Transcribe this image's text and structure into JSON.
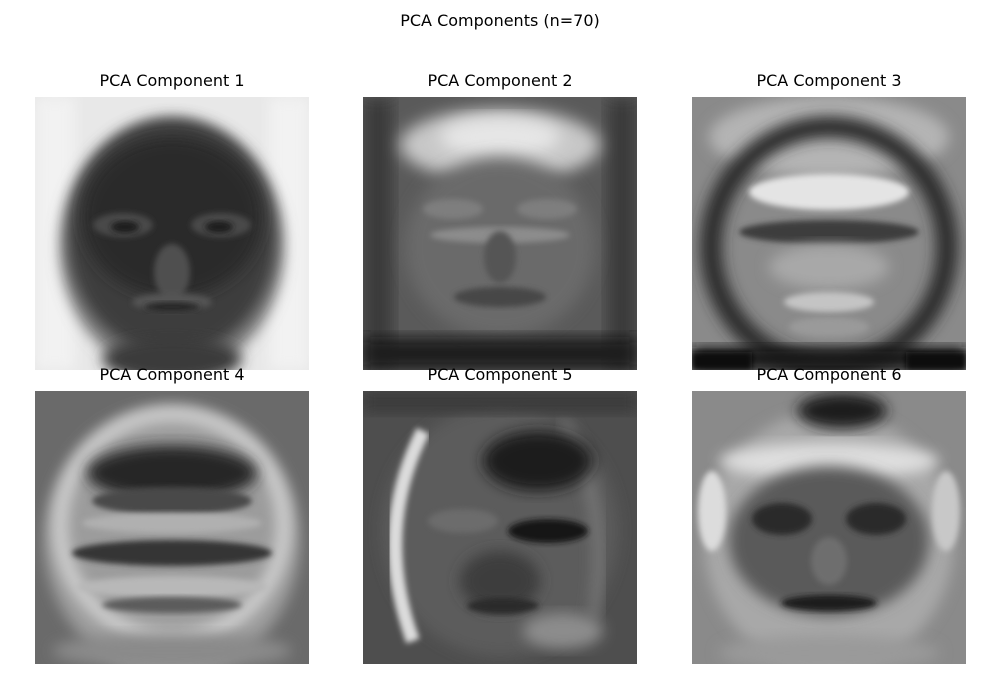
{
  "figure": {
    "suptitle": "PCA Components (n=70)"
  },
  "panels": [
    {
      "title": "PCA Component 1"
    },
    {
      "title": "PCA Component 2"
    },
    {
      "title": "PCA Component 3"
    },
    {
      "title": "PCA Component 4"
    },
    {
      "title": "PCA Component 5"
    },
    {
      "title": "PCA Component 6"
    }
  ],
  "colors": {
    "background": "#ffffff",
    "text": "#000000",
    "colormap": "gray"
  }
}
